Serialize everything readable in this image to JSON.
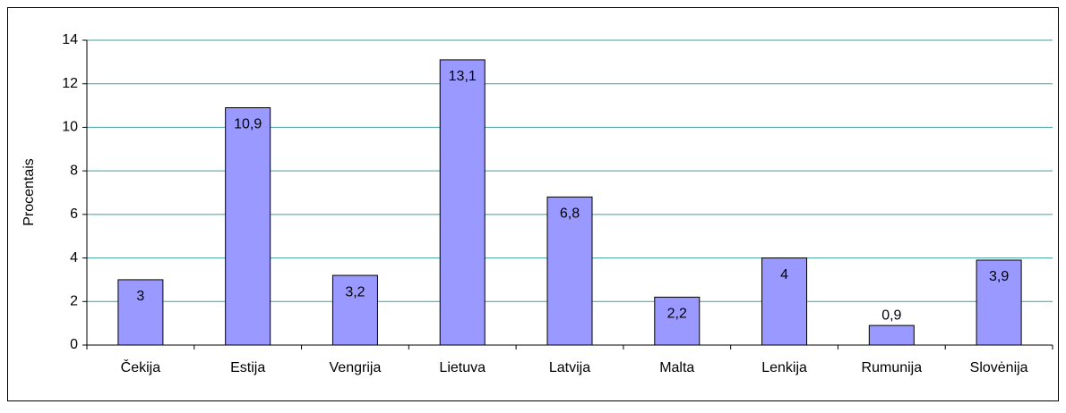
{
  "chart_data": {
    "type": "bar",
    "y_label": "Procentais",
    "categories": [
      "Čekija",
      "Estija",
      "Vengrija",
      "Lietuva",
      "Latvija",
      "Malta",
      "Lenkija",
      "Rumunija",
      "Slovėnija"
    ],
    "values": [
      3,
      10.9,
      3.2,
      13.1,
      6.8,
      2.2,
      4,
      0.9,
      3.9
    ],
    "value_labels": [
      "3",
      "10,9",
      "3,2",
      "13,1",
      "6,8",
      "2,2",
      "4",
      "0,9",
      "3,9"
    ],
    "color": "#9999ff",
    "grid_color": "#3f9f9f",
    "ylim": [
      0,
      14
    ],
    "yticks": [
      0,
      2,
      4,
      6,
      8,
      10,
      12,
      14
    ],
    "grid": true
  }
}
